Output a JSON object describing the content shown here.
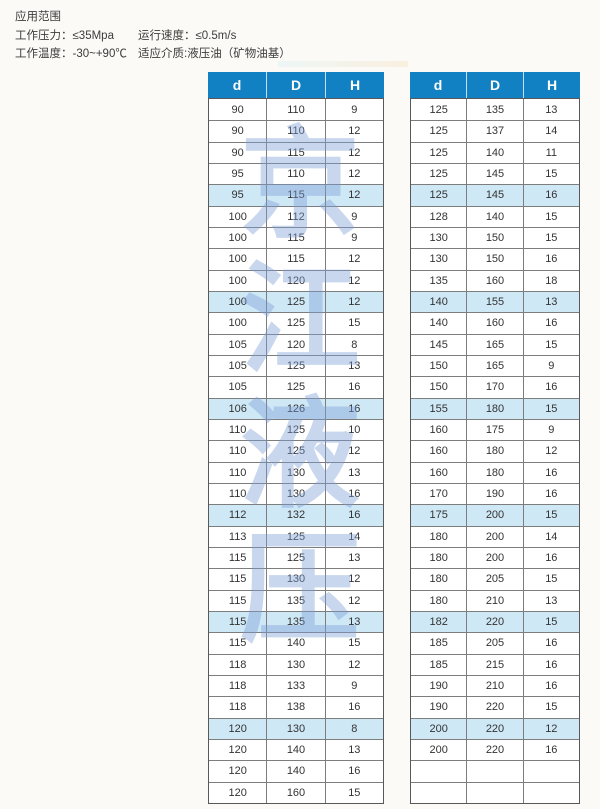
{
  "header_text": {
    "title": "应用范围",
    "rows": [
      {
        "left": "工作压力：≤35Mpa",
        "right": "运行速度：≤0.5m/s"
      },
      {
        "left": "工作温度：-30~+90℃",
        "right": "适应介质:液压油（矿物油基）"
      }
    ]
  },
  "watermark": {
    "text": "京江液压",
    "chars": [
      "京",
      "江",
      "液",
      "压"
    ],
    "color": "rgba(124,158,214,0.42)"
  },
  "colors": {
    "header_blue": "#1181c3",
    "highlight_row": "#cfe8f6",
    "border_gray": "#7d7d7d",
    "page_background": "#fbfaf7"
  },
  "tables": {
    "left": {
      "headers": [
        "d",
        "D",
        "H"
      ],
      "highlighted_rows": [
        5,
        10,
        15,
        20,
        25,
        30
      ],
      "rows": [
        [
          "90",
          "110",
          "9"
        ],
        [
          "90",
          "110",
          "12"
        ],
        [
          "90",
          "115",
          "12"
        ],
        [
          "95",
          "110",
          "12"
        ],
        [
          "95",
          "115",
          "12"
        ],
        [
          "100",
          "112",
          "9"
        ],
        [
          "100",
          "115",
          "9"
        ],
        [
          "100",
          "115",
          "12"
        ],
        [
          "100",
          "120",
          "12"
        ],
        [
          "100",
          "125",
          "12"
        ],
        [
          "100",
          "125",
          "15"
        ],
        [
          "105",
          "120",
          "8"
        ],
        [
          "105",
          "125",
          "13"
        ],
        [
          "105",
          "125",
          "16"
        ],
        [
          "106",
          "126",
          "16"
        ],
        [
          "110",
          "125",
          "10"
        ],
        [
          "110",
          "125",
          "12"
        ],
        [
          "110",
          "130",
          "13"
        ],
        [
          "110",
          "130",
          "16"
        ],
        [
          "112",
          "132",
          "16"
        ],
        [
          "113",
          "125",
          "14"
        ],
        [
          "115",
          "125",
          "13"
        ],
        [
          "115",
          "130",
          "12"
        ],
        [
          "115",
          "135",
          "12"
        ],
        [
          "115",
          "135",
          "13"
        ],
        [
          "115",
          "140",
          "15"
        ],
        [
          "118",
          "130",
          "12"
        ],
        [
          "118",
          "133",
          "9"
        ],
        [
          "118",
          "138",
          "16"
        ],
        [
          "120",
          "130",
          "8"
        ],
        [
          "120",
          "140",
          "13"
        ],
        [
          "120",
          "140",
          "16"
        ],
        [
          "120",
          "160",
          "15"
        ]
      ]
    },
    "right": {
      "headers": [
        "d",
        "D",
        "H"
      ],
      "highlighted_rows": [
        5,
        10,
        15,
        20,
        25,
        30
      ],
      "rows": [
        [
          "125",
          "135",
          "13"
        ],
        [
          "125",
          "137",
          "14"
        ],
        [
          "125",
          "140",
          "11"
        ],
        [
          "125",
          "145",
          "15"
        ],
        [
          "125",
          "145",
          "16"
        ],
        [
          "128",
          "140",
          "15"
        ],
        [
          "130",
          "150",
          "15"
        ],
        [
          "130",
          "150",
          "16"
        ],
        [
          "135",
          "160",
          "18"
        ],
        [
          "140",
          "155",
          "13"
        ],
        [
          "140",
          "160",
          "16"
        ],
        [
          "145",
          "165",
          "15"
        ],
        [
          "150",
          "165",
          "9"
        ],
        [
          "150",
          "170",
          "16"
        ],
        [
          "155",
          "180",
          "15"
        ],
        [
          "160",
          "175",
          "9"
        ],
        [
          "160",
          "180",
          "12"
        ],
        [
          "160",
          "180",
          "16"
        ],
        [
          "170",
          "190",
          "16"
        ],
        [
          "175",
          "200",
          "15"
        ],
        [
          "180",
          "200",
          "14"
        ],
        [
          "180",
          "200",
          "16"
        ],
        [
          "180",
          "205",
          "15"
        ],
        [
          "180",
          "210",
          "13"
        ],
        [
          "182",
          "220",
          "15"
        ],
        [
          "185",
          "205",
          "16"
        ],
        [
          "185",
          "215",
          "16"
        ],
        [
          "190",
          "210",
          "16"
        ],
        [
          "190",
          "220",
          "15"
        ],
        [
          "200",
          "220",
          "12"
        ],
        [
          "200",
          "220",
          "16"
        ],
        [
          "",
          "",
          ""
        ],
        [
          "",
          "",
          ""
        ]
      ]
    }
  }
}
